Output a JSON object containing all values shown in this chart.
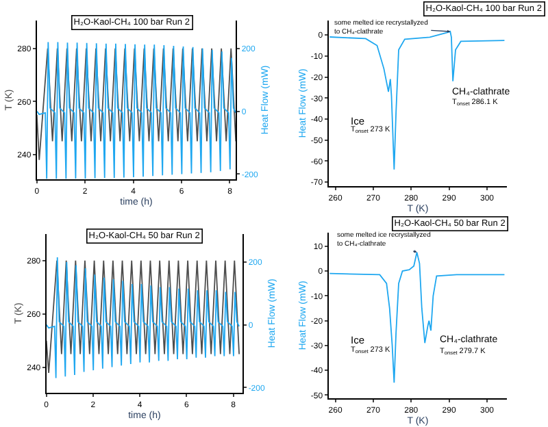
{
  "chart_data": [
    {
      "type": "line",
      "title": "H₂O-Kaol-CH₄ 100 bar Run 2",
      "xlabel": "time (h)",
      "ylabel": "T (K)",
      "y2label": "Heat Flow (mW)",
      "xlim": [
        0,
        8.25
      ],
      "xticks": [
        0,
        2,
        4,
        6,
        8
      ],
      "ylim": [
        230.6,
        290.6
      ],
      "yticks": [
        240,
        260,
        280
      ],
      "y2lim": [
        -217,
        289
      ],
      "y2ticks": [
        -200,
        0,
        200
      ],
      "series": [
        {
          "color": "#4d4d4d",
          "x": [
            0,
            0.1,
            0.45,
            0.65,
            0.85,
            1.05,
            1.25,
            1.45,
            1.65,
            1.85,
            2.05,
            2.25,
            2.45,
            2.65,
            2.85,
            3.05,
            3.25,
            3.45,
            3.65,
            3.85,
            4.05,
            4.25,
            4.45,
            4.65,
            4.85,
            5.05,
            5.25,
            5.45,
            5.65,
            5.85,
            6.05,
            6.25,
            6.45,
            6.65,
            6.85,
            7.05,
            7.25,
            7.45,
            7.65,
            7.85,
            8.05,
            8.25
          ],
          "values": [
            255,
            238,
            280,
            245,
            280,
            245,
            280,
            245,
            280,
            245,
            280,
            245,
            280,
            245,
            280,
            245,
            280,
            245,
            280,
            245,
            280,
            245,
            280,
            245,
            280,
            245,
            280,
            245,
            280,
            245,
            280,
            245,
            280,
            245,
            280,
            245,
            280,
            245,
            280,
            245,
            280,
            245
          ]
        },
        {
          "color": "#1ea7f0",
          "axis": "y2",
          "x": [
            0,
            0.1,
            0.35,
            0.41,
            0.47,
            0.55,
            0.75,
            0.81,
            0.87,
            0.95,
            1.15,
            1.21,
            1.27,
            1.35,
            1.55,
            1.61,
            1.67,
            1.75,
            1.95,
            2.01,
            2.07,
            2.15,
            2.35,
            2.41,
            2.47,
            2.55,
            2.75,
            2.81,
            2.87,
            2.95,
            3.15,
            3.21,
            3.27,
            3.35,
            3.55,
            3.61,
            3.67,
            3.75,
            3.95,
            4.01,
            4.07,
            4.15,
            4.35,
            4.41,
            4.47,
            4.55,
            4.75,
            4.81,
            4.87,
            4.95,
            5.15,
            5.21,
            5.27,
            5.35,
            5.55,
            5.61,
            5.67,
            5.75,
            5.95,
            6.01,
            6.07,
            6.15,
            6.35,
            6.41,
            6.47,
            6.55,
            6.75,
            6.81,
            6.87,
            6.95,
            7.15,
            7.21,
            7.27,
            7.35,
            7.55,
            7.61,
            7.67,
            7.75,
            7.95,
            8.01,
            8.07,
            8.15,
            8.25
          ],
          "values": [
            0,
            -10,
            -5,
            -215,
            220,
            10,
            -5,
            -215,
            220,
            10,
            -5,
            -215,
            218,
            10,
            -5,
            -214,
            218,
            10,
            -5,
            -214,
            217,
            10,
            -5,
            -213,
            216,
            10,
            -5,
            -212,
            215,
            10,
            -5,
            -212,
            215,
            10,
            -5,
            -211,
            214,
            10,
            -5,
            -210,
            213,
            10,
            -5,
            -208,
            212,
            10,
            -5,
            -206,
            212,
            10,
            -5,
            -204,
            210,
            10,
            -5,
            -202,
            208,
            10,
            -5,
            -200,
            206,
            10,
            -5,
            -198,
            204,
            10,
            -5,
            -196,
            200,
            10,
            -5,
            -194,
            195,
            10,
            -5,
            -190,
            190,
            10,
            -5,
            -185,
            170,
            10,
            -5
          ]
        }
      ]
    },
    {
      "type": "line",
      "title": "H₂O-Kaol-CH₄ 100 bar Run 2",
      "xlabel": "T (K)",
      "ylabel": "Heat Flow (mW)",
      "xlim": [
        258.2,
        305.3
      ],
      "xticks": [
        260,
        270,
        280,
        290,
        300
      ],
      "ylim": [
        -72,
        7
      ],
      "yticks": [
        0,
        -10,
        -20,
        -30,
        -40,
        -50,
        -60,
        -70
      ],
      "series": [
        {
          "color": "#1ea7f0",
          "x": [
            258.5,
            268,
            271,
            272.8,
            274,
            274.5,
            274.8,
            275.5,
            276,
            276.7,
            278.3,
            284.9,
            289.1,
            290.3,
            290.6,
            291,
            291.7,
            293.1,
            304.6
          ],
          "values": [
            -0.9,
            -1.7,
            -5,
            -16,
            -27,
            -21,
            -29,
            -64,
            -37,
            -7,
            -2,
            -1,
            1,
            1.7,
            -1,
            -22,
            -7,
            -3,
            -2.6
          ]
        }
      ],
      "annotations": [
        {
          "text": "some melted ice recrystallyzed\nto CH₄-clathrate",
          "x": 290.3,
          "y": 1.7
        },
        "CH₄-clathrate",
        "T$_{onset}$ 286.1 K",
        "Ice",
        "T$_{onset}$ 273 K"
      ]
    },
    {
      "type": "line",
      "title": "H₂O-Kaol-CH₄ 50 bar Run 2",
      "xlabel": "time (h)",
      "ylabel": "T (K)",
      "y2label": "Heat Flow (mW)",
      "xlim": [
        0,
        8.4
      ],
      "xticks": [
        0,
        2,
        4,
        6,
        8
      ],
      "ylim": [
        230.5,
        290
      ],
      "yticks": [
        240,
        260,
        280
      ],
      "y2lim": [
        -217,
        290
      ],
      "y2ticks": [
        -200,
        0,
        200
      ],
      "series": [
        {
          "color": "#4d4d4d",
          "x": [
            0,
            0.1,
            0.45,
            0.65,
            0.85,
            1.05,
            1.25,
            1.45,
            1.65,
            1.85,
            2.05,
            2.25,
            2.45,
            2.65,
            2.85,
            3.05,
            3.25,
            3.45,
            3.65,
            3.85,
            4.05,
            4.25,
            4.45,
            4.65,
            4.85,
            5.05,
            5.25,
            5.45,
            5.65,
            5.85,
            6.05,
            6.25,
            6.45,
            6.65,
            6.85,
            7.05,
            7.25,
            7.45,
            7.65,
            7.85,
            8.05,
            8.25
          ],
          "values": [
            250,
            238,
            280,
            245,
            280,
            245,
            280,
            245,
            280,
            245,
            280,
            245,
            280,
            245,
            280,
            245,
            280,
            245,
            280,
            245,
            280,
            245,
            280,
            245,
            280,
            245,
            280,
            245,
            280,
            245,
            280,
            245,
            280,
            245,
            280,
            245,
            280,
            245,
            280,
            245,
            280,
            245
          ]
        },
        {
          "color": "#1ea7f0",
          "axis": "y2",
          "x": [
            0,
            0.1,
            0.35,
            0.41,
            0.47,
            0.55,
            0.75,
            0.81,
            0.87,
            0.95,
            1.15,
            1.21,
            1.27,
            1.35,
            1.55,
            1.61,
            1.67,
            1.75,
            1.95,
            2.01,
            2.07,
            2.15,
            2.35,
            2.41,
            2.47,
            2.55,
            2.75,
            2.81,
            2.87,
            2.95,
            3.15,
            3.21,
            3.27,
            3.35,
            3.55,
            3.61,
            3.67,
            3.75,
            3.95,
            4.01,
            4.07,
            4.15,
            4.35,
            4.41,
            4.47,
            4.55,
            4.75,
            4.81,
            4.87,
            4.95,
            5.15,
            5.21,
            5.27,
            5.35,
            5.55,
            5.61,
            5.67,
            5.75,
            5.95,
            6.01,
            6.07,
            6.15,
            6.35,
            6.41,
            6.47,
            6.55,
            6.75,
            6.81,
            6.87,
            6.95,
            7.15,
            7.21,
            7.27,
            7.35,
            7.55,
            7.61,
            7.67,
            7.75,
            7.95,
            8.01,
            8.07,
            8.15,
            8.25
          ],
          "values": [
            0,
            -10,
            -5,
            -170,
            215,
            10,
            -5,
            -165,
            200,
            10,
            -5,
            -160,
            190,
            10,
            -5,
            -150,
            180,
            10,
            -5,
            -145,
            160,
            10,
            -5,
            -140,
            150,
            10,
            -5,
            -135,
            145,
            10,
            -5,
            -130,
            140,
            10,
            -5,
            -125,
            130,
            10,
            -5,
            -120,
            130,
            10,
            -5,
            -120,
            125,
            10,
            -5,
            -115,
            120,
            10,
            -5,
            -115,
            120,
            10,
            -5,
            -110,
            115,
            10,
            -5,
            -110,
            115,
            10,
            -5,
            -105,
            110,
            10,
            -5,
            -105,
            110,
            10,
            -5,
            -100,
            110,
            10,
            -5,
            -100,
            105,
            10,
            -5,
            -100,
            105,
            10,
            -5
          ]
        }
      ]
    },
    {
      "type": "line",
      "title": "H₂O-Kaol-CH₄ 50 bar Run 2",
      "xlabel": "T (K)",
      "ylabel": "Heat Flow (mW)",
      "xlim": [
        258.2,
        305.3
      ],
      "xticks": [
        260,
        270,
        280,
        290,
        300
      ],
      "ylim": [
        -51.3,
        15.5
      ],
      "yticks": [
        10,
        0,
        -10,
        -20,
        -30,
        -40,
        -50
      ],
      "series": [
        {
          "color": "#1ea7f0",
          "x": [
            258.5,
            271.7,
            273.5,
            274.3,
            275,
            275.5,
            276,
            276.7,
            277.7,
            279.5,
            280.7,
            281.5,
            282.2,
            282.8,
            283.6,
            284.4,
            284.7,
            285.2,
            285.8,
            286.7,
            292,
            304.6
          ],
          "values": [
            -1,
            -1.5,
            -5,
            -15,
            -30,
            -45,
            -25,
            -5,
            0,
            0.5,
            2,
            7.5,
            3,
            -15,
            -29,
            -22,
            -20,
            -24,
            -10,
            -2,
            -1.5,
            -1.5
          ]
        }
      ],
      "annotations": [
        {
          "text": "some melted ice recrystallyzed\nto CH₄-clathrate",
          "x": 281.5,
          "y": 7.5
        },
        "Ice",
        "T$_{onset}$ 273 K",
        "CH₄-clathrate",
        "T$_{onset}$ 279.7 K"
      ]
    }
  ]
}
